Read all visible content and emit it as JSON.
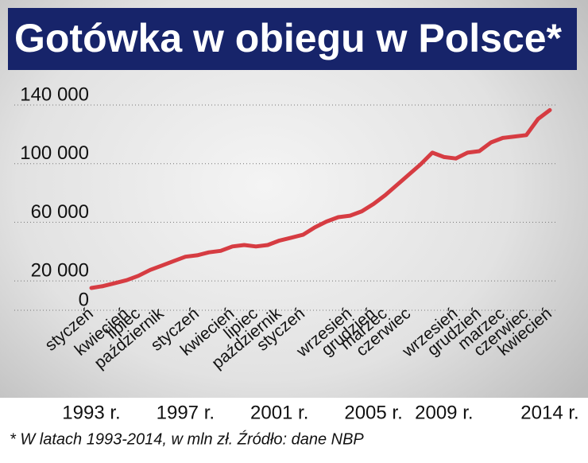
{
  "chart_data": {
    "type": "line",
    "title": "Gotówka w obiegu w Polsce*",
    "footnote": "* W latach 1993-2014, w mln zł. Źródło: dane NBP",
    "categories": [
      "styczeń",
      null,
      null,
      "kwiecień",
      "lipiec",
      null,
      "październik",
      null,
      null,
      "styczeń",
      null,
      null,
      "kwiecień",
      null,
      "lipiec",
      null,
      "październik",
      null,
      "styczeń",
      null,
      null,
      null,
      "wrzesień",
      null,
      "grudzień",
      "marzec",
      null,
      "czerwiec",
      null,
      null,
      null,
      "wrzesień",
      null,
      "grudzień",
      null,
      "marzec",
      null,
      "czerwiec",
      null,
      "kwiecień"
    ],
    "year_labels": [
      "1993 r.",
      null,
      null,
      null,
      null,
      null,
      null,
      null,
      "1997 r.",
      null,
      null,
      null,
      null,
      null,
      null,
      null,
      "2001 r.",
      null,
      null,
      null,
      null,
      null,
      null,
      null,
      "2005 r.",
      null,
      null,
      null,
      null,
      null,
      "2009 r.",
      null,
      null,
      null,
      null,
      null,
      null,
      null,
      null,
      "2014 r."
    ],
    "series": [
      {
        "color": "#d63c42",
        "values": [
          8700,
          10000,
          12000,
          14000,
          17000,
          21000,
          24000,
          27000,
          30000,
          31000,
          33000,
          34000,
          37000,
          38000,
          37000,
          38000,
          41000,
          43000,
          45000,
          50000,
          54000,
          57000,
          58000,
          61000,
          66000,
          72000,
          79000,
          86000,
          93000,
          101000,
          98000,
          97000,
          101000,
          102000,
          108000,
          111000,
          112000,
          113000,
          124000,
          130000
        ]
      }
    ],
    "ylim": [
      0,
      140000
    ],
    "yticks": [
      0,
      {
        "value": 20000,
        "label": "20 000"
      },
      {
        "value": 60000,
        "label": "60 000"
      },
      {
        "value": 100000,
        "label": "100 000"
      },
      {
        "value": 140000,
        "label": "140 000"
      }
    ],
    "grid": true
  }
}
